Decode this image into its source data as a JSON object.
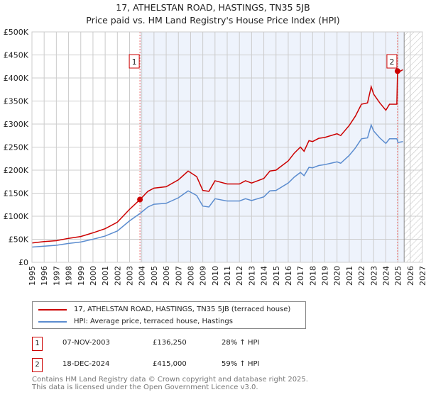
{
  "chart_data": {
    "type": "line",
    "title": "17, ATHELSTAN ROAD, HASTINGS, TN35 5JB",
    "subtitle": "Price paid vs. HM Land Registry's House Price Index (HPI)",
    "xlim": [
      1995,
      2027
    ],
    "ylim": [
      0,
      500000
    ],
    "y_ticks": [
      "£0",
      "£50K",
      "£100K",
      "£150K",
      "£200K",
      "£250K",
      "£300K",
      "£350K",
      "£400K",
      "£450K",
      "£500K"
    ],
    "x_ticks": [
      "1995",
      "1996",
      "1997",
      "1998",
      "1999",
      "2000",
      "2001",
      "2002",
      "2003",
      "2004",
      "2005",
      "2006",
      "2007",
      "2008",
      "2009",
      "2010",
      "2011",
      "2012",
      "2013",
      "2014",
      "2015",
      "2016",
      "2017",
      "2018",
      "2019",
      "2020",
      "2021",
      "2022",
      "2023",
      "2024",
      "2025",
      "2026",
      "2027"
    ],
    "grid": true,
    "series": [
      {
        "name": "17, ATHELSTAN ROAD, HASTINGS, TN35 5JB (terraced house)",
        "color": "#cc0000",
        "x": [
          1995,
          1996,
          1997,
          1998,
          1999,
          2000,
          2001,
          2002,
          2003,
          2003.85,
          2004.5,
          2005,
          2006,
          2007,
          2007.8,
          2008.5,
          2009,
          2009.5,
          2010,
          2011,
          2012,
          2012.5,
          2013,
          2014,
          2014.5,
          2015,
          2016,
          2016.5,
          2017,
          2017.3,
          2017.7,
          2018,
          2018.5,
          2019,
          2019.5,
          2020,
          2020.3,
          2021,
          2021.5,
          2022,
          2022.5,
          2022.8,
          2023,
          2023.5,
          2024,
          2024.3,
          2024.9,
          2024.96,
          2025,
          2025.4
        ],
        "y": [
          42,
          45,
          47,
          52,
          56,
          64,
          73,
          87,
          115,
          136,
          154,
          161,
          164,
          179,
          198,
          186,
          156,
          154,
          177,
          170,
          170,
          177,
          172,
          182,
          198,
          200,
          220,
          237,
          250,
          241,
          264,
          262,
          269,
          271,
          275,
          279,
          275,
          297,
          317,
          343,
          346,
          381,
          365,
          346,
          330,
          343,
          343,
          415,
          412,
          418
        ]
      },
      {
        "name": "HPI: Average price, terraced house, Hastings",
        "color": "#5b8ccf",
        "x": [
          1995,
          1996,
          1997,
          1998,
          1999,
          2000,
          2001,
          2002,
          2003,
          2003.85,
          2004.5,
          2005,
          2006,
          2007,
          2007.8,
          2008.5,
          2009,
          2009.5,
          2010,
          2011,
          2012,
          2012.5,
          2013,
          2014,
          2014.5,
          2015,
          2016,
          2016.5,
          2017,
          2017.3,
          2017.7,
          2018,
          2018.5,
          2019,
          2019.5,
          2020,
          2020.3,
          2021,
          2021.5,
          2022,
          2022.5,
          2022.8,
          2023,
          2023.5,
          2024,
          2024.3,
          2024.9,
          2025,
          2025.4
        ],
        "y": [
          33,
          35,
          37,
          41,
          44,
          50,
          57,
          68,
          90,
          106,
          120,
          126,
          128,
          140,
          155,
          145,
          122,
          120,
          138,
          133,
          133,
          138,
          134,
          142,
          155,
          156,
          172,
          185,
          195,
          188,
          206,
          205,
          210,
          212,
          215,
          218,
          215,
          232,
          248,
          268,
          270,
          298,
          285,
          270,
          258,
          268,
          268,
          260,
          262
        ]
      }
    ],
    "y_units": "thousands GBP",
    "shaded_range": [
      2003.85,
      2025.5
    ],
    "forecast_hatch": [
      2025.5,
      2027
    ],
    "annotations": [
      {
        "label": "1",
        "x": 2003.85,
        "y": 136.25
      },
      {
        "label": "2",
        "x": 2024.96,
        "y": 415
      }
    ],
    "legend_placement": "below"
  },
  "sales": [
    {
      "num": "1",
      "date": "07-NOV-2003",
      "price": "£136,250",
      "hpi": "28% ↑ HPI"
    },
    {
      "num": "2",
      "date": "18-DEC-2024",
      "price": "£415,000",
      "hpi": "59% ↑ HPI"
    }
  ],
  "footer": [
    "Contains HM Land Registry data © Crown copyright and database right 2025.",
    "This data is licensed under the Open Government Licence v3.0."
  ]
}
